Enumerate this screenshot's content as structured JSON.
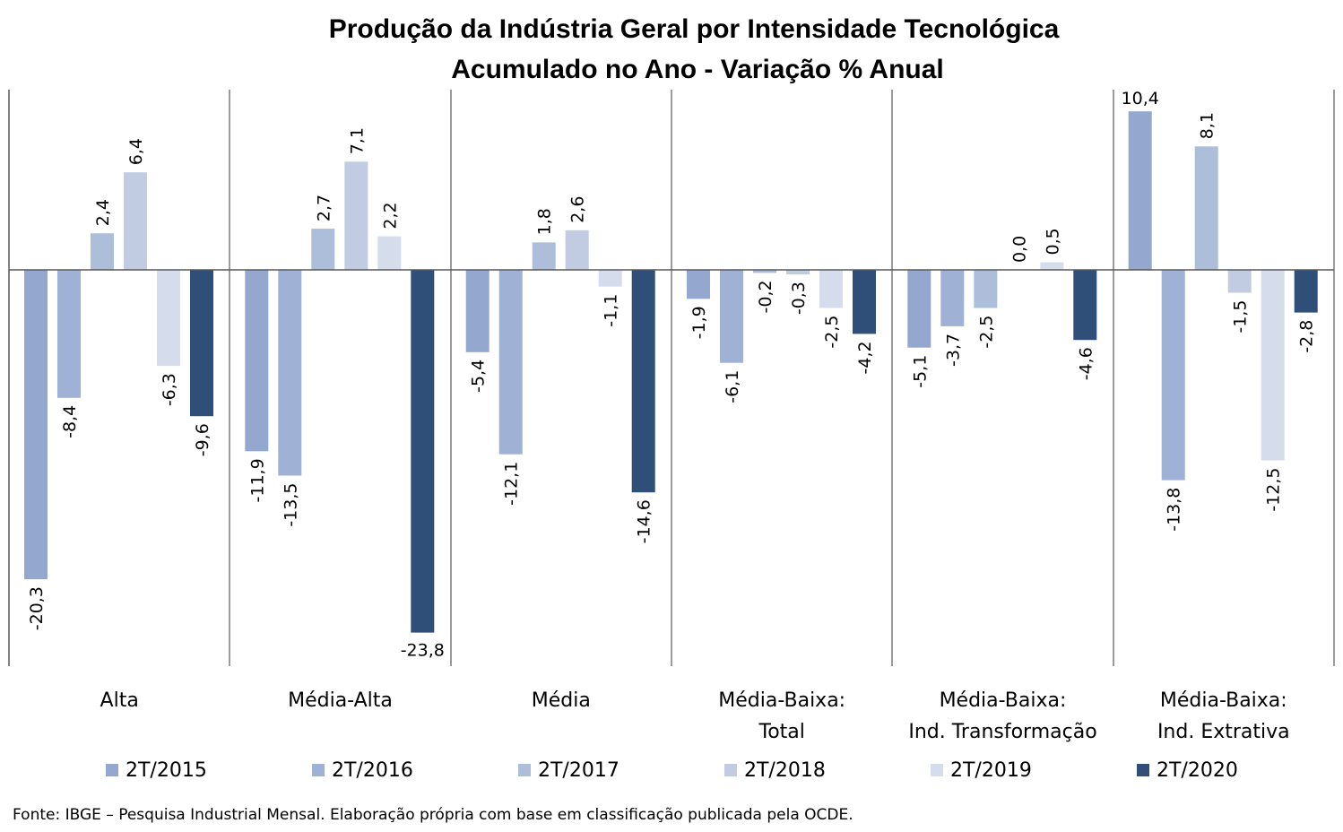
{
  "chart_data": {
    "type": "bar",
    "title_lines": [
      "Produção da Indústria Geral por Intensidade Tecnológica",
      "Acumulado no Ano - Variação % Anual"
    ],
    "categories": [
      [
        "Alta"
      ],
      [
        "Média-Alta"
      ],
      [
        "Média"
      ],
      [
        "Média-Baixa:",
        "Total"
      ],
      [
        "Média-Baixa:",
        "Ind. Transformação"
      ],
      [
        "Média-Baixa:",
        "Ind. Extrativa"
      ]
    ],
    "series": [
      {
        "name": "2T/2015",
        "color": "#94a8cf",
        "values": [
          -20.3,
          -11.9,
          -5.4,
          -1.9,
          -5.1,
          10.4
        ]
      },
      {
        "name": "2T/2016",
        "color": "#9fb1d4",
        "values": [
          -8.4,
          -13.5,
          -12.1,
          -6.1,
          -3.7,
          -13.8
        ]
      },
      {
        "name": "2T/2017",
        "color": "#adbedb",
        "values": [
          2.4,
          2.7,
          1.8,
          -0.2,
          -2.5,
          8.1
        ]
      },
      {
        "name": "2T/2018",
        "color": "#c1cce2",
        "values": [
          6.4,
          7.1,
          2.6,
          -0.3,
          0.0,
          -1.5
        ]
      },
      {
        "name": "2T/2019",
        "color": "#d5ddec",
        "values": [
          -6.3,
          2.2,
          -1.1,
          -2.5,
          0.5,
          -12.5
        ]
      },
      {
        "name": "2T/2020",
        "color": "#2f4f79",
        "values": [
          -9.6,
          -23.8,
          -14.6,
          -4.2,
          -4.6,
          -2.8
        ]
      }
    ],
    "data_labels": [
      [
        "-20,3",
        "-11,9",
        "-5,4",
        "-1,9",
        "-5,1",
        "10,4"
      ],
      [
        "-8,4",
        "-13,5",
        "-12,1",
        "-6,1",
        "-3,7",
        "-13,8"
      ],
      [
        "2,4",
        "2,7",
        "1,8",
        "-0,2",
        "-2,5",
        "8,1"
      ],
      [
        "6,4",
        "7,1",
        "2,6",
        "-0,3",
        "0,0",
        "-1,5"
      ],
      [
        "-6,3",
        "2,2",
        "-1,1",
        "-2,5",
        "0,5",
        "-12,5"
      ],
      [
        "-9,6",
        "-23,8",
        "-14,6",
        "-4,2",
        "-4,6",
        "-2,8"
      ]
    ],
    "ylim": [
      -26,
      11.7
    ],
    "legend_position": "bottom",
    "grid": false,
    "category_separators": true,
    "axis_color": "#595959"
  },
  "source_note": "Fonte: IBGE – Pesquisa Industrial Mensal. Elaboração própria com base em classificação publicada pela OCDE."
}
